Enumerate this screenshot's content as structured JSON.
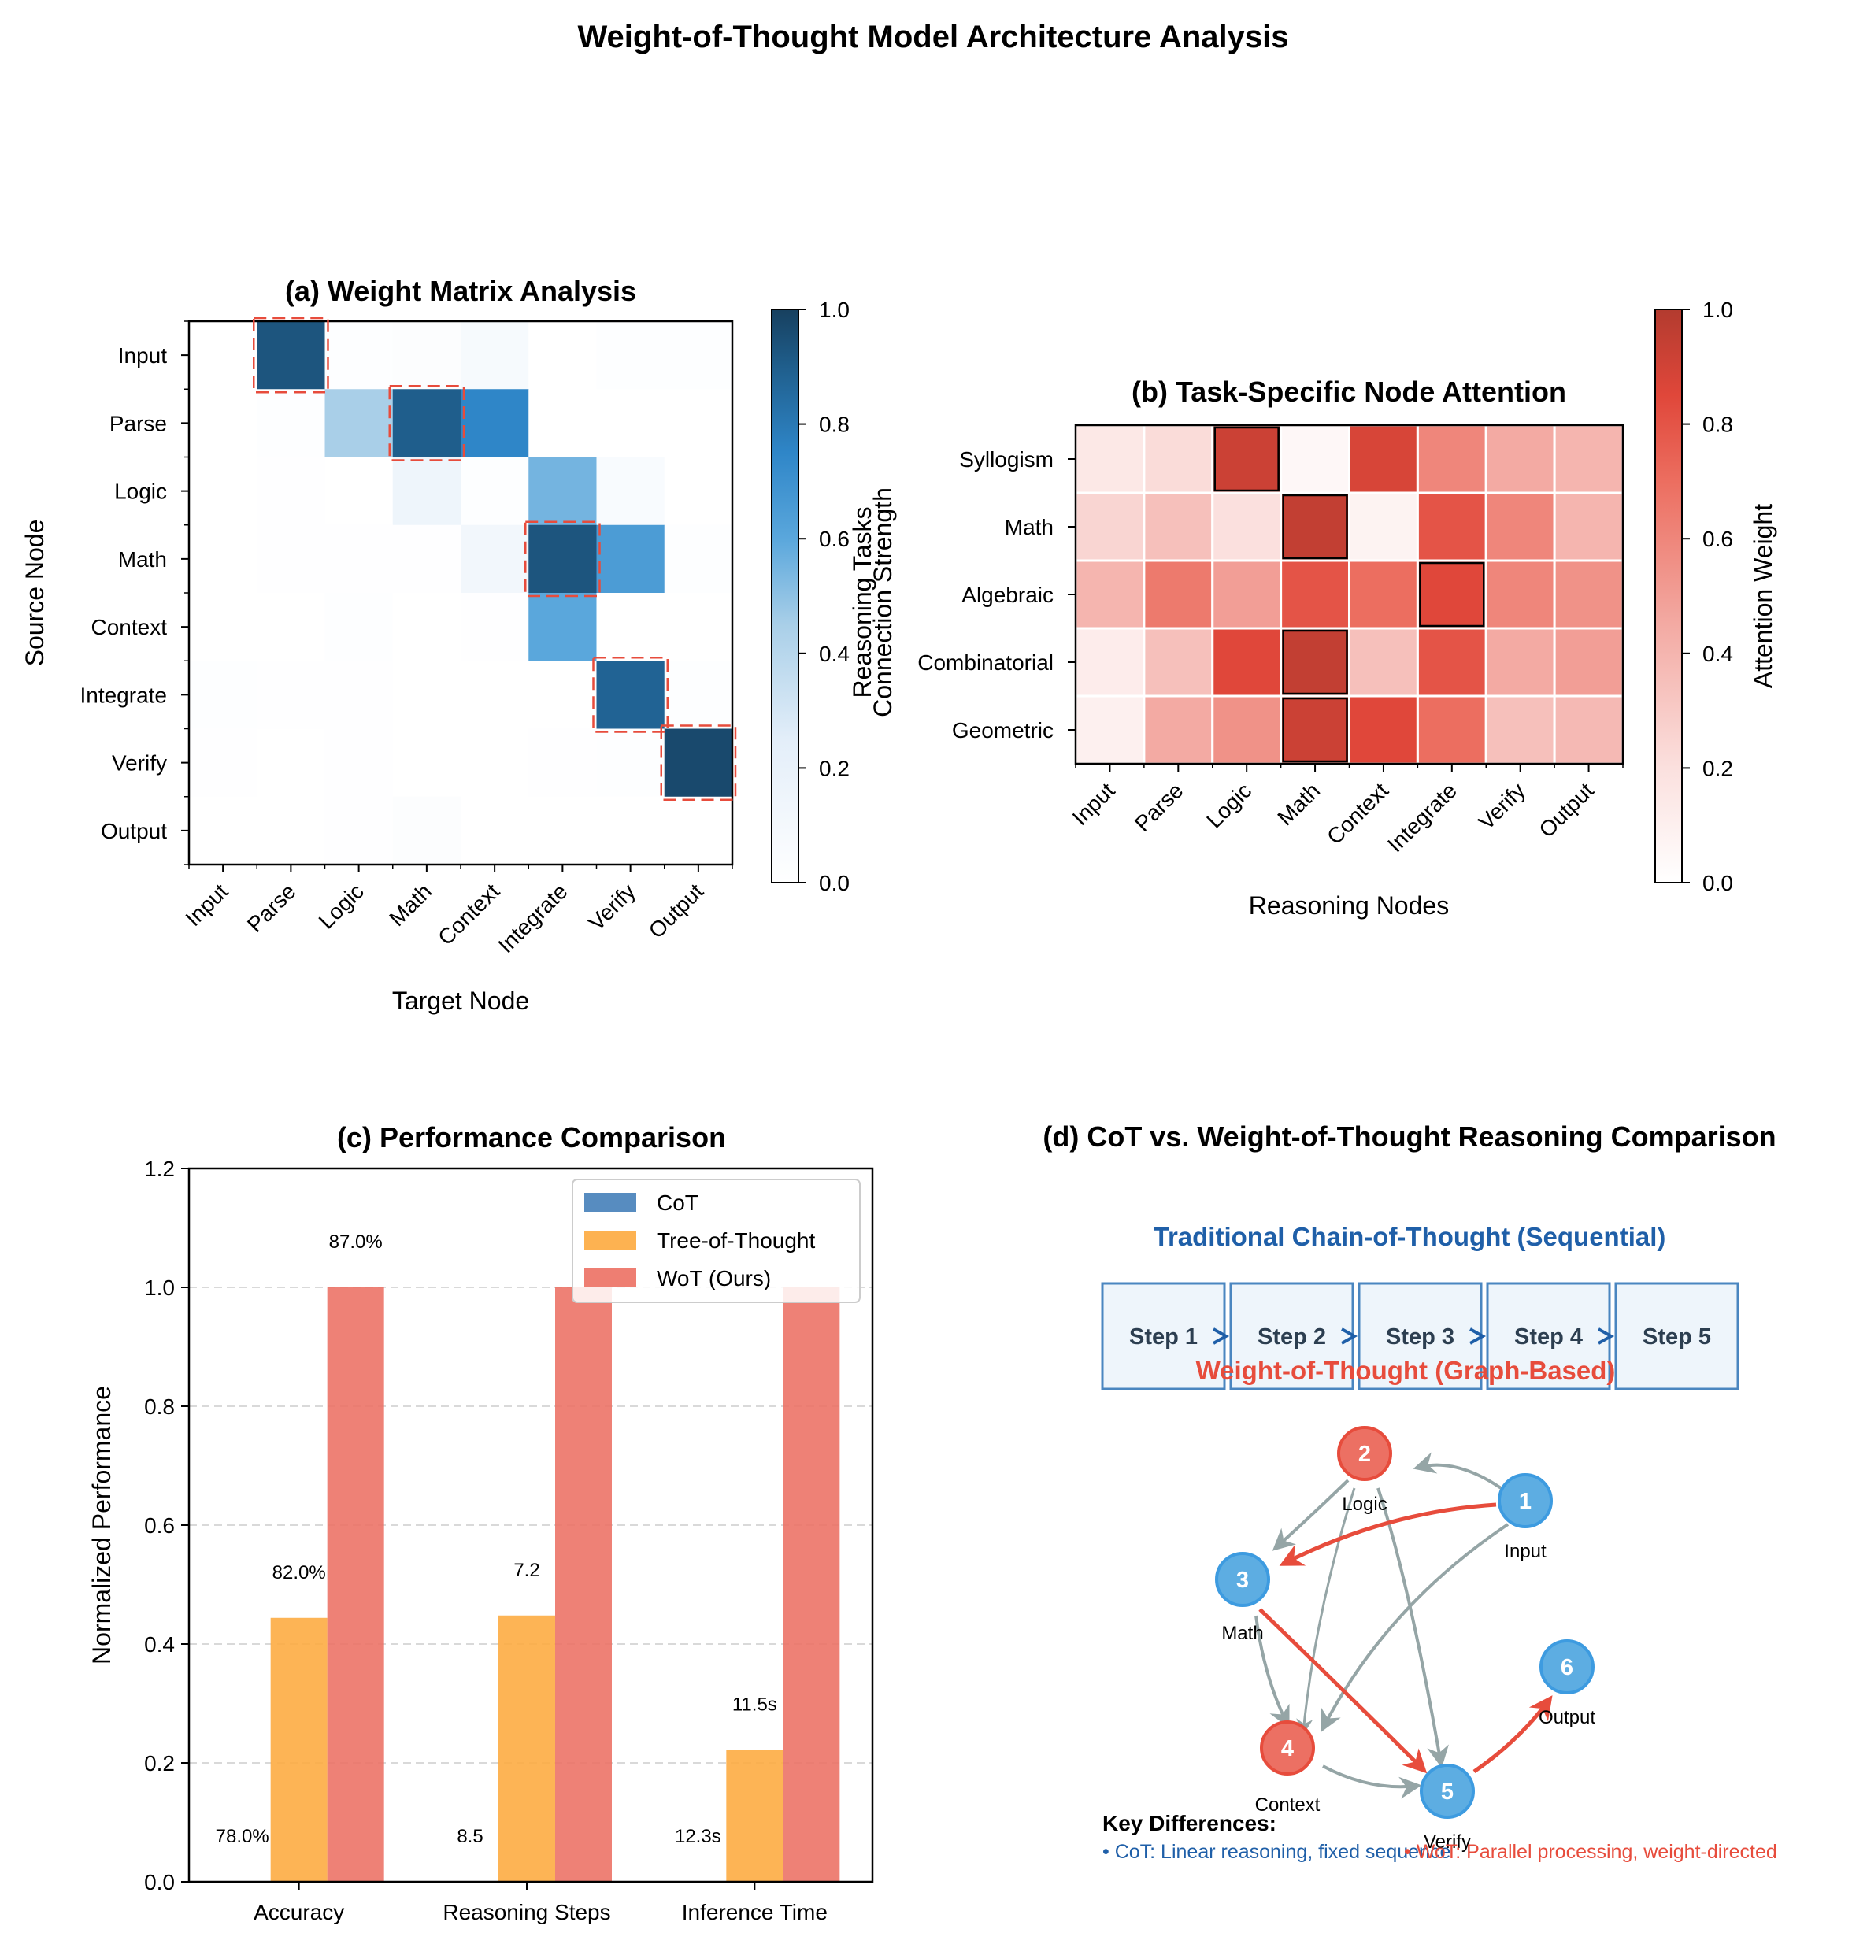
{
  "figure": {
    "title": "Weight-of-Thought Model Architecture Analysis"
  },
  "panel_a": {
    "title": "(a) Weight Matrix Analysis",
    "xlabel": "Target Node",
    "ylabel": "Source Node",
    "colorbar_label": "Connection Strength",
    "colorbar_label_overlap": "Reasoning Tasks",
    "colorbar_ticks": [
      "0.0",
      "0.2",
      "0.4",
      "0.6",
      "0.8",
      "1.0"
    ],
    "row_labels": [
      "Input",
      "Parse",
      "Logic",
      "Math",
      "Context",
      "Integrate",
      "Verify",
      "Output"
    ],
    "col_labels": [
      "Input",
      "Parse",
      "Logic",
      "Math",
      "Context",
      "Integrate",
      "Verify",
      "Output"
    ]
  },
  "panel_b": {
    "title": "(b) Task-Specific Node Attention",
    "xlabel": "Reasoning Nodes",
    "colorbar_label": "Attention Weight",
    "colorbar_ticks": [
      "0.0",
      "0.2",
      "0.4",
      "0.6",
      "0.8",
      "1.0"
    ],
    "row_labels": [
      "Syllogism",
      "Math",
      "Algebraic",
      "Combinatorial",
      "Geometric"
    ],
    "col_labels": [
      "Input",
      "Parse",
      "Logic",
      "Math",
      "Context",
      "Integrate",
      "Verify",
      "Output"
    ]
  },
  "panel_c": {
    "title": "(c) Performance Comparison",
    "ylabel": "Normalized Performance",
    "yticks": [
      "0.0",
      "0.2",
      "0.4",
      "0.6",
      "0.8",
      "1.0",
      "1.2"
    ],
    "legend": [
      "CoT",
      "Tree-of-Thought",
      "WoT (Ours)"
    ],
    "bar_labels": {
      "cot": [
        "78.0%",
        "8.5",
        "12.3s"
      ],
      "tot": [
        "82.0%",
        "7.2",
        "11.5s"
      ],
      "wot": [
        "87.0%",
        "",
        ""
      ]
    }
  },
  "panel_d": {
    "title": "(d) CoT vs. Weight-of-Thought Reasoning Comparison",
    "cot_title": "Traditional Chain-of-Thought (Sequential)",
    "steps": [
      "Step 1",
      "Step 2",
      "Step 3",
      "Step 4",
      "Step 5"
    ],
    "wot_title": "Weight-of-Thought (Graph-Based)",
    "nodes": [
      {
        "num": "1",
        "label": "Input",
        "kind": "blue"
      },
      {
        "num": "2",
        "label": "Logic",
        "kind": "red"
      },
      {
        "num": "3",
        "label": "Math",
        "kind": "blue"
      },
      {
        "num": "4",
        "label": "Context",
        "kind": "red"
      },
      {
        "num": "5",
        "label": "Verify",
        "kind": "blue"
      },
      {
        "num": "6",
        "label": "Output",
        "kind": "blue"
      }
    ],
    "key_title": "Key Differences:",
    "key_cot": "• CoT: Linear reasoning, fixed sequence",
    "key_wot": "• WoT: Parallel processing, weight-directed"
  },
  "colors": {
    "cot": "#3a78b5",
    "tot": "#fdaa3e",
    "wot": "#ec7063",
    "blue_node": "#5dade2",
    "red_node": "#ec7063",
    "grey_edge": "#95a5a6",
    "red_edge": "#e74c3c",
    "cot_text": "#1f5fa8",
    "wot_text": "#e74c3c"
  },
  "chart_data": [
    {
      "type": "heatmap",
      "title": "(a) Weight Matrix Analysis",
      "xlabel": "Target Node",
      "ylabel": "Source Node",
      "rows": [
        "Input",
        "Parse",
        "Logic",
        "Math",
        "Context",
        "Integrate",
        "Verify",
        "Output"
      ],
      "cols": [
        "Input",
        "Parse",
        "Logic",
        "Math",
        "Context",
        "Integrate",
        "Verify",
        "Output"
      ],
      "values": [
        [
          0.0,
          0.93,
          0.02,
          0.03,
          0.08,
          0.0,
          0.02,
          0.02
        ],
        [
          0.0,
          0.02,
          0.45,
          0.9,
          0.75,
          0.0,
          0.0,
          0.0
        ],
        [
          0.0,
          0.01,
          0.0,
          0.15,
          0.02,
          0.55,
          0.06,
          0.0
        ],
        [
          0.0,
          0.01,
          0.01,
          0.01,
          0.12,
          0.93,
          0.65,
          0.02
        ],
        [
          0.0,
          0.0,
          0.02,
          0.0,
          0.01,
          0.6,
          0.0,
          0.0
        ],
        [
          0.02,
          0.01,
          0.01,
          0.0,
          0.0,
          0.0,
          0.88,
          0.02
        ],
        [
          0.01,
          0.0,
          0.01,
          0.0,
          0.0,
          0.01,
          0.02,
          0.97
        ],
        [
          0.0,
          0.0,
          0.01,
          0.03,
          0.0,
          0.0,
          0.0,
          0.0
        ]
      ],
      "highlighted_cells": [
        [
          0,
          1
        ],
        [
          1,
          3
        ],
        [
          3,
          5
        ],
        [
          5,
          6
        ],
        [
          6,
          7
        ]
      ],
      "colorbar": {
        "label": "Connection Strength",
        "range": [
          0,
          1
        ],
        "colormap": "Blues"
      }
    },
    {
      "type": "heatmap",
      "title": "(b) Task-Specific Node Attention",
      "xlabel": "Reasoning Nodes",
      "rows": [
        "Syllogism",
        "Math",
        "Algebraic",
        "Combinatorial",
        "Geometric"
      ],
      "cols": [
        "Input",
        "Parse",
        "Logic",
        "Math",
        "Context",
        "Integrate",
        "Verify",
        "Output"
      ],
      "values": [
        [
          0.15,
          0.22,
          0.92,
          0.05,
          0.88,
          0.6,
          0.45,
          0.4
        ],
        [
          0.25,
          0.35,
          0.2,
          0.95,
          0.08,
          0.8,
          0.6,
          0.4
        ],
        [
          0.4,
          0.65,
          0.5,
          0.8,
          0.7,
          0.85,
          0.6,
          0.55
        ],
        [
          0.12,
          0.35,
          0.85,
          0.95,
          0.35,
          0.8,
          0.45,
          0.5
        ],
        [
          0.1,
          0.45,
          0.55,
          0.92,
          0.85,
          0.7,
          0.35,
          0.38
        ]
      ],
      "highlighted_cells": [
        [
          0,
          2
        ],
        [
          1,
          3
        ],
        [
          2,
          5
        ],
        [
          3,
          3
        ],
        [
          4,
          3
        ]
      ],
      "colorbar": {
        "label": "Attention Weight",
        "range": [
          0,
          1
        ],
        "colormap": "Reds"
      }
    },
    {
      "type": "bar",
      "title": "(c) Performance Comparison",
      "ylabel": "Normalized Performance",
      "categories": [
        "Accuracy",
        "Reasoning Steps",
        "Inference Time"
      ],
      "ylim": [
        0,
        1.2
      ],
      "grid": true,
      "legend_position": "top-right",
      "series": [
        {
          "name": "CoT",
          "values": [
            0.0,
            0.0,
            0.0
          ]
        },
        {
          "name": "Tree-of-Thought",
          "values": [
            0.444,
            0.448,
            0.222
          ]
        },
        {
          "name": "WoT (Ours)",
          "values": [
            1.0,
            1.0,
            1.0
          ]
        }
      ]
    }
  ]
}
